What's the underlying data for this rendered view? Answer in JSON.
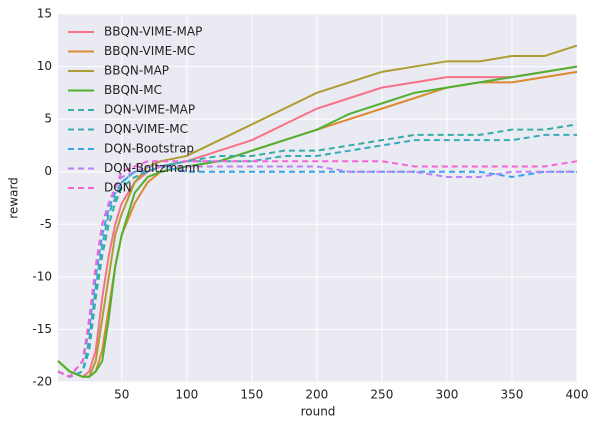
{
  "chart_data": {
    "type": "line",
    "x": [
      1,
      10,
      20,
      25,
      30,
      35,
      40,
      45,
      50,
      60,
      70,
      80,
      100,
      125,
      150,
      175,
      200,
      225,
      250,
      275,
      300,
      325,
      350,
      375,
      400
    ],
    "series": [
      {
        "name": "BBQN-VIME-MAP",
        "color": "#f77189",
        "dashed": false,
        "values": [
          -18,
          -19,
          -19.5,
          -19,
          -17,
          -12,
          -8,
          -5,
          -3,
          -1,
          0,
          0.5,
          1,
          2,
          3,
          4.5,
          6,
          7,
          8,
          8.5,
          9,
          9,
          9,
          9.5,
          10
        ]
      },
      {
        "name": "BBQN-VIME-MC",
        "color": "#dc8932",
        "dashed": false,
        "values": [
          -18,
          -19,
          -19.5,
          -19.5,
          -19,
          -17,
          -13,
          -9,
          -6,
          -3,
          -1,
          0,
          0.5,
          1,
          2,
          3,
          4,
          5,
          6,
          7,
          8,
          8.5,
          8.5,
          9,
          9.5
        ]
      },
      {
        "name": "BBQN-MAP",
        "color": "#ae9d31",
        "dashed": false,
        "values": [
          -18,
          -19,
          -19.5,
          -19.5,
          -18,
          -14,
          -10,
          -6,
          -4,
          -1,
          0.5,
          1,
          1.5,
          3,
          4.5,
          6,
          7.5,
          8.5,
          9.5,
          10,
          10.5,
          10.5,
          11,
          11,
          12
        ]
      },
      {
        "name": "BBQN-MC",
        "color": "#50b131",
        "dashed": false,
        "values": [
          -18,
          -19,
          -19.5,
          -19.5,
          -19,
          -18,
          -14,
          -9,
          -6,
          -2,
          -0.5,
          0,
          0.5,
          1,
          2,
          3,
          4,
          5.5,
          6.5,
          7.5,
          8,
          8.5,
          9,
          9.5,
          10
        ]
      },
      {
        "name": "DQN-VIME-MAP",
        "color": "#36ada4",
        "dashed": true,
        "values": [
          -19,
          -19.5,
          -19,
          -17,
          -12,
          -8,
          -5,
          -3,
          -1.5,
          -0.5,
          0,
          0.5,
          1,
          1.5,
          1.5,
          2,
          2,
          2.5,
          3,
          3.5,
          3.5,
          3.5,
          4,
          4,
          4.5
        ]
      },
      {
        "name": "DQN-VIME-MC",
        "color": "#38aabb",
        "dashed": true,
        "values": [
          -19,
          -19.5,
          -19,
          -16,
          -11,
          -7,
          -4,
          -2.5,
          -1,
          0,
          0.5,
          0.5,
          1,
          1,
          1,
          1.5,
          1.5,
          2,
          2.5,
          3,
          3,
          3,
          3,
          3.5,
          3.5
        ]
      },
      {
        "name": "DQN-Bootstrap",
        "color": "#3ba3ec",
        "dashed": true,
        "values": [
          -19,
          -19.5,
          -18,
          -15,
          -10,
          -6,
          -3.5,
          -2,
          -1,
          0,
          0,
          0.5,
          0,
          0,
          0,
          0,
          0,
          0,
          0,
          0,
          0,
          0,
          -0.5,
          0,
          0
        ]
      },
      {
        "name": "DQN-Boltzmann",
        "color": "#bb83f4",
        "dashed": true,
        "values": [
          -19,
          -19.5,
          -18,
          -14,
          -9,
          -5,
          -3,
          -1.5,
          -0.5,
          0,
          0.5,
          0.5,
          0.5,
          0.5,
          0.5,
          0.5,
          0.5,
          0,
          0,
          0,
          -0.5,
          -0.5,
          0,
          0,
          0
        ]
      },
      {
        "name": "DQN",
        "color": "#f564d4",
        "dashed": true,
        "values": [
          -19,
          -19.5,
          -18,
          -14,
          -9,
          -5,
          -3,
          -1.5,
          0,
          0.5,
          1,
          1,
          1,
          1,
          1,
          1,
          1,
          1,
          1,
          0.5,
          0.5,
          0.5,
          0.5,
          0.5,
          1
        ]
      }
    ],
    "x_label": "round",
    "y_label": "reward",
    "xlim": [
      1,
      400
    ],
    "xticks": [
      50,
      100,
      150,
      200,
      250,
      300,
      350,
      400
    ],
    "ylim": [
      -20,
      15
    ],
    "yticks": [
      -20,
      -15,
      -10,
      -5,
      0,
      5,
      10,
      15
    ],
    "grid": true,
    "legend": "upper left"
  }
}
